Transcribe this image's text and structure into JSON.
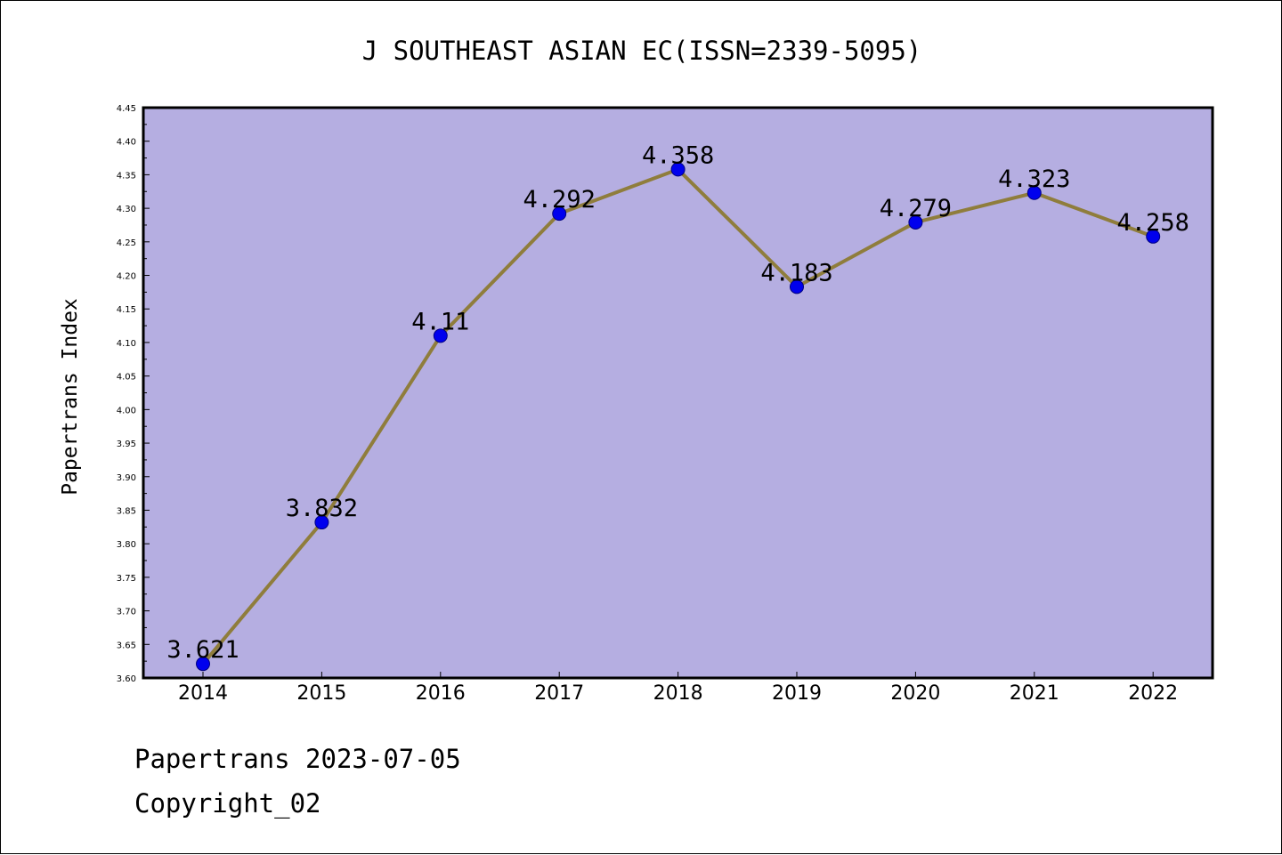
{
  "chart_data": {
    "type": "line",
    "title": "J SOUTHEAST ASIAN EC(ISSN=2339-5095)",
    "ylabel": "Papertrans Index",
    "xlabel": "",
    "categories": [
      "2014",
      "2015",
      "2016",
      "2017",
      "2018",
      "2019",
      "2020",
      "2021",
      "2022"
    ],
    "values": [
      3.621,
      3.832,
      4.11,
      4.292,
      4.358,
      4.183,
      4.279,
      4.323,
      4.258
    ],
    "data_labels": [
      "3.621",
      "3.832",
      "4.11",
      "4.292",
      "4.358",
      "4.183",
      "4.279",
      "4.323",
      "4.258"
    ],
    "ylim": [
      3.6,
      4.45
    ],
    "yticks": [
      "3.60",
      "3.65",
      "3.70",
      "3.75",
      "3.80",
      "3.85",
      "3.90",
      "3.95",
      "4.00",
      "4.05",
      "4.10",
      "4.15",
      "4.20",
      "4.25",
      "4.30",
      "4.35",
      "4.40",
      "4.45"
    ],
    "grid": false,
    "legend": "none",
    "colors": {
      "plot_background": "#b5aee1",
      "line": "#8f7d3c",
      "marker_fill": "#0000ee",
      "marker_edge": "#000080",
      "axis": "#000000"
    }
  },
  "footer": {
    "line1": "Papertrans 2023-07-05",
    "line2": "Copyright_02"
  }
}
